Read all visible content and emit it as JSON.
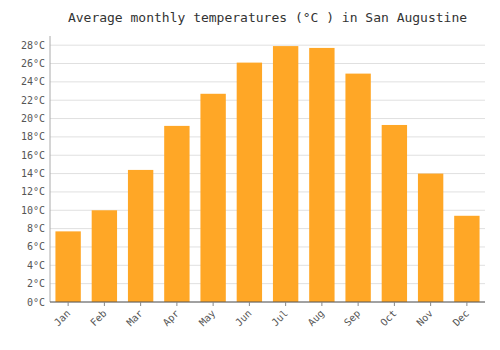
{
  "chart_data": {
    "type": "bar",
    "title": "Average monthly temperatures (°C ) in San Augustine",
    "categories": [
      "Jan",
      "Feb",
      "Mar",
      "Apr",
      "May",
      "Jun",
      "Jul",
      "Aug",
      "Sep",
      "Oct",
      "Nov",
      "Dec"
    ],
    "values": [
      7.7,
      10.0,
      14.4,
      19.2,
      22.7,
      26.1,
      27.9,
      27.7,
      24.9,
      19.3,
      14.0,
      9.4
    ],
    "color": "#FFA726",
    "ylim": [
      0,
      29
    ],
    "yticks": [
      {
        "value": 0,
        "label": "0°C"
      },
      {
        "value": 2,
        "label": "2°C"
      },
      {
        "value": 4,
        "label": "4°C"
      },
      {
        "value": 6,
        "label": "6°C"
      },
      {
        "value": 8,
        "label": "8°C"
      },
      {
        "value": 10,
        "label": "10°C"
      },
      {
        "value": 12,
        "label": "12°C"
      },
      {
        "value": 14,
        "label": "14°C"
      },
      {
        "value": 16,
        "label": "16°C"
      },
      {
        "value": 18,
        "label": "18°C"
      },
      {
        "value": 20,
        "label": "20°C"
      },
      {
        "value": 22,
        "label": "22°C"
      },
      {
        "value": 24,
        "label": "24°C"
      },
      {
        "value": 26,
        "label": "26°C"
      },
      {
        "value": 28,
        "label": "28°C"
      }
    ],
    "grid": true
  }
}
